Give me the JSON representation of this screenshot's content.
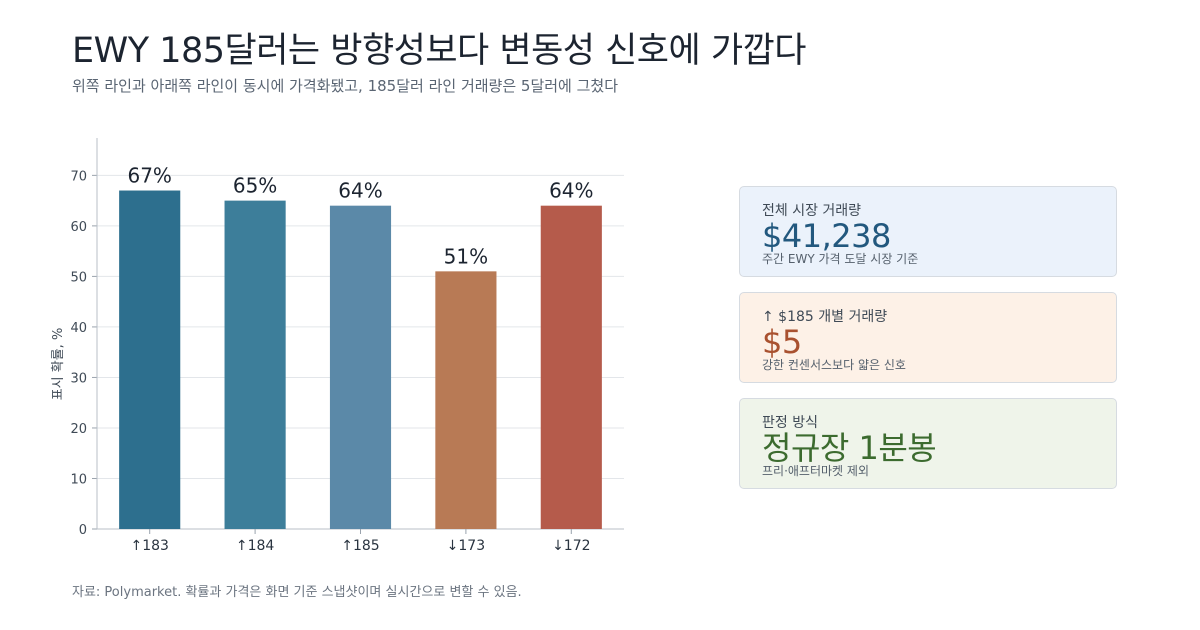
{
  "header": {
    "title": "EWY 185달러는 방향성보다 변동성 신호에 가깝다",
    "subtitle": "위쪽 라인과 아래쪽 라인이 동시에 가격화됐고, 185달러 라인 거래량은 5달러에 그쳤다"
  },
  "chart_data": {
    "type": "bar",
    "categories": [
      "↑183",
      "↑184",
      "↑185",
      "↓173",
      "↓172"
    ],
    "values": [
      67,
      65,
      64,
      51,
      64
    ],
    "value_labels": [
      "67%",
      "65%",
      "64%",
      "51%",
      "64%"
    ],
    "colors": [
      "#2d6f8e",
      "#3d7e9a",
      "#5b89a8",
      "#b87a55",
      "#b55b4b"
    ],
    "ylabel": "표시 확률, %",
    "xlabel": "",
    "ylim": [
      0,
      77
    ],
    "yticks": [
      0,
      10,
      20,
      30,
      40,
      50,
      60,
      70
    ],
    "grid": true
  },
  "cards": [
    {
      "label": "전체 시장 거래량",
      "value": "$41,238",
      "note": "주간 EWY 가격 도달 시장 기준"
    },
    {
      "label": "↑ $185 개별 거래량",
      "value": "$5",
      "note": "강한 컨센서스보다 얇은 신호"
    },
    {
      "label": "판정 방식",
      "value": "정규장 1분봉",
      "note": "프리·애프터마켓 제외"
    }
  ],
  "footer": "자료: Polymarket. 확률과 가격은 화면 기준 스냅샷이며 실시간으로 변할 수 있음."
}
